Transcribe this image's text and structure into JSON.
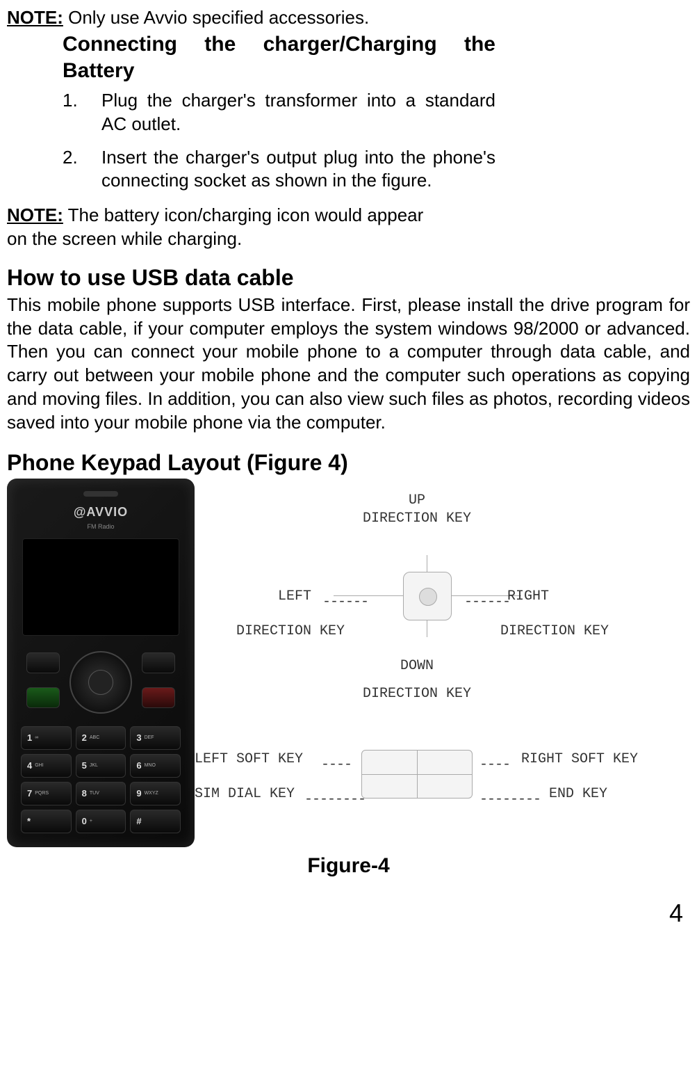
{
  "note1": {
    "label": "NOTE:",
    "text": "Only use Avvio specified accessories."
  },
  "section_charger": {
    "heading_line1": "Connecting the charger/Charging the",
    "heading_line2": "Battery",
    "items": [
      {
        "num": "1.",
        "text": "Plug the charger's transformer into a standard AC outlet."
      },
      {
        "num": "2.",
        "text": "Insert the charger's output plug into the phone's connecting socket as shown in the figure."
      }
    ]
  },
  "note2": {
    "label": "NOTE:",
    "text_line1": "  The battery icon/charging icon would appear",
    "text_line2": "on the screen while charging."
  },
  "section_usb": {
    "heading": "How to use USB data cable",
    "body": "This mobile phone supports USB interface. First, please install the drive program for the data cable, if your computer employs the system windows 98/2000 or advanced. Then you can connect your mobile phone to a computer through data cable, and carry out between your mobile phone and the computer such operations as copying and moving files. In addition, you can also view such files as photos, recording videos saved into your mobile phone via the computer."
  },
  "section_keypad": {
    "heading": "Phone Keypad Layout (Figure 4)"
  },
  "phone": {
    "logo": "@AVVIO",
    "sublabel": "FM Radio",
    "keys": [
      {
        "n": "1",
        "s": "∞"
      },
      {
        "n": "2",
        "s": "ABC"
      },
      {
        "n": "3",
        "s": "DEF"
      },
      {
        "n": "4",
        "s": "GHI"
      },
      {
        "n": "5",
        "s": "JKL"
      },
      {
        "n": "6",
        "s": "MNO"
      },
      {
        "n": "7",
        "s": "PQRS"
      },
      {
        "n": "8",
        "s": "TUV"
      },
      {
        "n": "9",
        "s": "WXYZ"
      },
      {
        "n": "*",
        "s": ""
      },
      {
        "n": "0",
        "s": "+"
      },
      {
        "n": "#",
        "s": ""
      }
    ]
  },
  "diagram": {
    "up": "UP",
    "down": "DOWN",
    "left": "LEFT",
    "right": "RIGHT",
    "direction_key": "DIRECTION KEY",
    "left_soft_key": "LEFT SOFT KEY",
    "right_soft_key": "RIGHT SOFT KEY",
    "sim_dial_key": "SIM DIAL KEY",
    "end_key": "END KEY",
    "dash6": "------",
    "dash4": "----",
    "dash8": "--------"
  },
  "figure_caption": "Figure-4",
  "page_number": "4",
  "colors": {
    "text": "#000000",
    "background": "#ffffff",
    "diagram_line": "#aaaaaa",
    "diagram_text": "#333333",
    "phone_body": "#0a0a0a"
  }
}
